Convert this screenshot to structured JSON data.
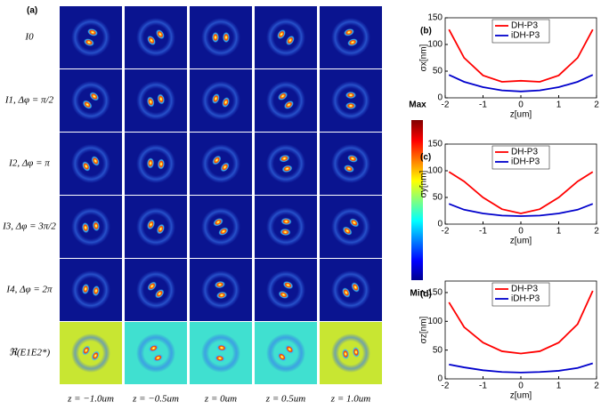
{
  "panel_a": {
    "label": "(a)",
    "rows": [
      "I0",
      "I1, Δφ = π/2",
      "I2, Δφ = π",
      "I3, Δφ = 3π/2",
      "I4, Δφ = 2π",
      "ℜ(E1E2*)"
    ],
    "columns": [
      "z = −1.0um",
      "z = −0.5um",
      "z = 0um",
      "z = 0.5um",
      "z = 1.0um"
    ],
    "colorbar": {
      "max": "Max",
      "min": "Min"
    }
  },
  "chart_data": [
    {
      "type": "line",
      "label": "(b)",
      "xlabel": "z[um]",
      "ylabel": "σx[nm]",
      "xlim": [
        -2,
        2
      ],
      "xticks": [
        -2,
        -1,
        0,
        1,
        2
      ],
      "ylim": [
        0,
        150
      ],
      "yticks": [
        0,
        50,
        100,
        150
      ],
      "legend": "upper center",
      "x": [
        -1.9,
        -1.5,
        -1,
        -0.5,
        0,
        0.5,
        1,
        1.5,
        1.9
      ],
      "series": [
        {
          "name": "DH-P3",
          "color": "#ff0000",
          "values": [
            128,
            75,
            42,
            30,
            32,
            30,
            42,
            75,
            128
          ]
        },
        {
          "name": "iDH-P3",
          "color": "#0000cc",
          "values": [
            43,
            30,
            20,
            14,
            12,
            14,
            20,
            30,
            43
          ]
        }
      ]
    },
    {
      "type": "line",
      "label": "(c)",
      "xlabel": "z[um]",
      "ylabel": "σy[nm]",
      "xlim": [
        -2,
        2
      ],
      "xticks": [
        -2,
        -1,
        0,
        1,
        2
      ],
      "ylim": [
        0,
        150
      ],
      "yticks": [
        0,
        50,
        100,
        150
      ],
      "legend": "upper center",
      "x": [
        -1.9,
        -1.5,
        -1,
        -0.5,
        0,
        0.5,
        1,
        1.5,
        1.9
      ],
      "series": [
        {
          "name": "DH-P3",
          "color": "#ff0000",
          "values": [
            98,
            80,
            50,
            28,
            20,
            28,
            50,
            80,
            98
          ]
        },
        {
          "name": "iDH-P3",
          "color": "#0000cc",
          "values": [
            38,
            27,
            20,
            16,
            15,
            16,
            20,
            27,
            38
          ]
        }
      ]
    },
    {
      "type": "line",
      "label": "(d)",
      "xlabel": "z[um]",
      "ylabel": "σz[nm]",
      "xlim": [
        -2,
        2
      ],
      "xticks": [
        -2,
        -1,
        0,
        1,
        2
      ],
      "ylim": [
        0,
        170
      ],
      "yticks": [
        0,
        50,
        100,
        150
      ],
      "legend": "upper center",
      "x": [
        -1.9,
        -1.5,
        -1,
        -0.5,
        0,
        0.5,
        1,
        1.5,
        1.9
      ],
      "series": [
        {
          "name": "DH-P3",
          "color": "#ff0000",
          "values": [
            133,
            90,
            63,
            48,
            44,
            48,
            63,
            95,
            153
          ]
        },
        {
          "name": "iDH-P3",
          "color": "#0000cc",
          "values": [
            25,
            20,
            15,
            12,
            11,
            12,
            14,
            19,
            27
          ]
        }
      ]
    }
  ]
}
